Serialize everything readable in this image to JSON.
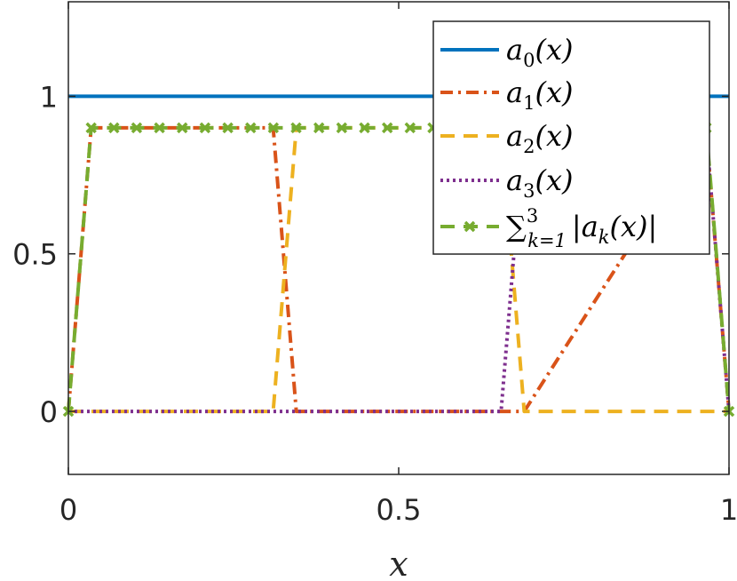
{
  "chart_data": {
    "type": "line",
    "xlabel": "x",
    "ylabel": "",
    "title": "",
    "xlim": [
      0,
      1
    ],
    "ylim": [
      -0.2,
      1.3
    ],
    "xticks": [
      0,
      0.5,
      1
    ],
    "xtick_labels": [
      "0",
      "0.5",
      "1"
    ],
    "yticks": [
      0,
      0.5,
      1
    ],
    "ytick_labels": [
      "0",
      "0.5",
      "1"
    ],
    "grid": false,
    "legend_position": "top-right",
    "series": [
      {
        "name": "a_0(x)",
        "legend_base": "a",
        "legend_sub": "0",
        "legend_tail": "(x)",
        "color": "#0072BD",
        "style": "solid",
        "marker": "none",
        "x": [
          0,
          1
        ],
        "y": [
          1,
          1
        ]
      },
      {
        "name": "a_1(x)",
        "legend_base": "a",
        "legend_sub": "1",
        "legend_tail": "(x)",
        "color": "#D95319",
        "style": "dashdot",
        "marker": "none",
        "x": [
          0,
          0.0345,
          0.31,
          0.345,
          0.655,
          0.69,
          0.965,
          1
        ],
        "y": [
          0,
          0.9,
          0.9,
          0,
          0,
          0,
          0.9,
          0
        ]
      },
      {
        "name": "a_2(x)",
        "legend_base": "a",
        "legend_sub": "2",
        "legend_tail": "(x)",
        "color": "#EDB120",
        "style": "dashed",
        "marker": "none",
        "x": [
          0,
          0.31,
          0.345,
          0.655,
          0.69,
          1
        ],
        "y": [
          0,
          0,
          0.9,
          0.9,
          0,
          0
        ]
      },
      {
        "name": "a_3(x)",
        "legend_base": "a",
        "legend_sub": "3",
        "legend_tail": "(x)",
        "color": "#7E2F8E",
        "style": "dotted",
        "marker": "none",
        "x": [
          0,
          0.655,
          0.69,
          0.965,
          1
        ],
        "y": [
          0,
          0,
          0.9,
          0.9,
          0
        ]
      },
      {
        "name": "sum_{k=1}^3 |a_k(x)|",
        "legend_sum": "∑",
        "legend_sum_sub": "k=1",
        "legend_sum_sup": "3",
        "legend_body": "|a",
        "legend_body_sub": "k",
        "legend_body_tail": "(x)|",
        "color": "#77AC30",
        "style": "dashed",
        "marker": "x",
        "x": [
          0,
          0.0345,
          0.069,
          0.1034,
          0.1379,
          0.1724,
          0.2069,
          0.2414,
          0.2759,
          0.3103,
          0.3448,
          0.3793,
          0.4138,
          0.4483,
          0.4828,
          0.5172,
          0.5517,
          0.5862,
          0.6207,
          0.6552,
          0.6897,
          0.7241,
          0.7586,
          0.7931,
          0.8276,
          0.8621,
          0.8966,
          0.931,
          0.9655,
          1
        ],
        "y": [
          0,
          0.9,
          0.9,
          0.9,
          0.9,
          0.9,
          0.9,
          0.9,
          0.9,
          0.9,
          0.9,
          0.9,
          0.9,
          0.9,
          0.9,
          0.9,
          0.9,
          0.9,
          0.9,
          0.9,
          0.9,
          0.9,
          0.9,
          0.9,
          0.9,
          0.9,
          0.9,
          0.9,
          0.9,
          0
        ]
      }
    ]
  }
}
